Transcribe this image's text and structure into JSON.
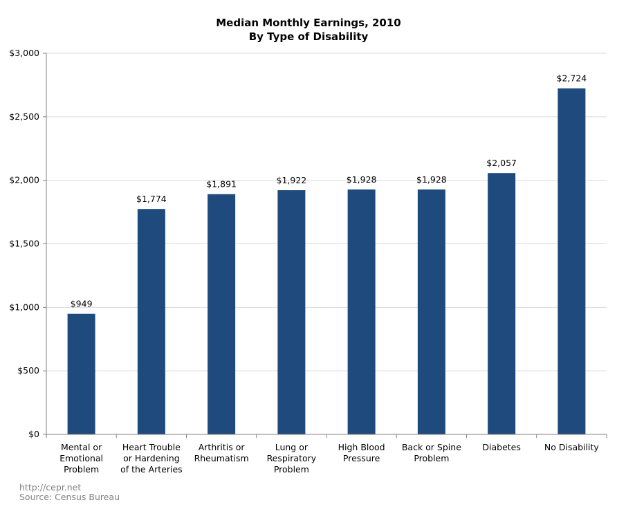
{
  "chart_data": {
    "type": "bar",
    "title": "Median Monthly Earnings, 2010",
    "subtitle": "By Type of Disability",
    "categories": [
      [
        "Mental or",
        "Emotional",
        "Problem"
      ],
      [
        "Heart Trouble",
        "or Hardening",
        "of the Arteries"
      ],
      [
        "Arthritis or",
        "Rheumatism"
      ],
      [
        "Lung or",
        "Respiratory",
        "Problem"
      ],
      [
        "High Blood",
        "Pressure"
      ],
      [
        "Back or Spine",
        "Problem"
      ],
      [
        "Diabetes"
      ],
      [
        "No Disability"
      ]
    ],
    "values": [
      949,
      1774,
      1891,
      1922,
      1928,
      1928,
      2057,
      2724
    ],
    "data_labels": [
      "$949",
      "$1,774",
      "$1,891",
      "$1,922",
      "$1,928",
      "$1,928",
      "$2,057",
      "$2,724"
    ],
    "ylim": [
      0,
      3000
    ],
    "yticks": [
      0,
      500,
      1000,
      1500,
      2000,
      2500,
      3000
    ],
    "ytick_labels": [
      "$0",
      "$500",
      "$1,000",
      "$1,500",
      "$2,000",
      "$2,500",
      "$3,000"
    ],
    "grid": true,
    "bar_color": "#1f4a7d",
    "grid_color": "#d9d9d9",
    "axis_color": "#808080"
  },
  "footer": {
    "url": "http://cepr.net",
    "source": "Source: Census Bureau"
  }
}
